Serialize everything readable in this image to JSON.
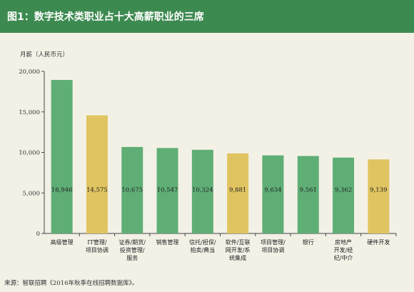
{
  "header": {
    "title": "图1：数字技术类职业占十大高薪职业的三席"
  },
  "chart_data": {
    "type": "bar",
    "title": "图1：数字技术类职业占十大高薪职业的三席",
    "ylabel": "月薪（人民币元）",
    "xlabel": "",
    "ylim": [
      0,
      20000
    ],
    "yticks": [
      "0",
      "5,000",
      "10,000",
      "15,000",
      "20,000"
    ],
    "grid": false,
    "categories": [
      [
        "高级管理"
      ],
      [
        "IT管理/",
        "项目协调"
      ],
      [
        "证券/期货/",
        "投资管理/",
        "服务"
      ],
      [
        "销售管理"
      ],
      [
        "信托/担保/",
        "拍卖/典当"
      ],
      [
        "软件/互联",
        "网开发/系",
        "统集成"
      ],
      [
        "项目管理/",
        "项目协调"
      ],
      [
        "银行"
      ],
      [
        "房地产",
        "开发/经",
        "纪/中介"
      ],
      [
        "硬件开发"
      ]
    ],
    "values": [
      18946,
      14575,
      10675,
      10547,
      10324,
      9881,
      9634,
      9561,
      9362,
      9139
    ],
    "value_labels": [
      "18,946",
      "14,575",
      "10,675",
      "10,547",
      "10,324",
      "9,881",
      "9,634",
      "9,561",
      "9,362",
      "9,139"
    ],
    "bar_colors": [
      "#5fae76",
      "#e0c461",
      "#5fae76",
      "#5fae76",
      "#5fae76",
      "#e0c461",
      "#5fae76",
      "#5fae76",
      "#5fae76",
      "#e0c461"
    ]
  },
  "colors": {
    "title_bar": "#3d8a51",
    "background": "#f3f1e6",
    "bar_green": "#5fae76",
    "bar_yellow": "#e0c461"
  },
  "footer": {
    "source": "来源：智联招聘《2016年秋季在线招聘数据库》。"
  }
}
